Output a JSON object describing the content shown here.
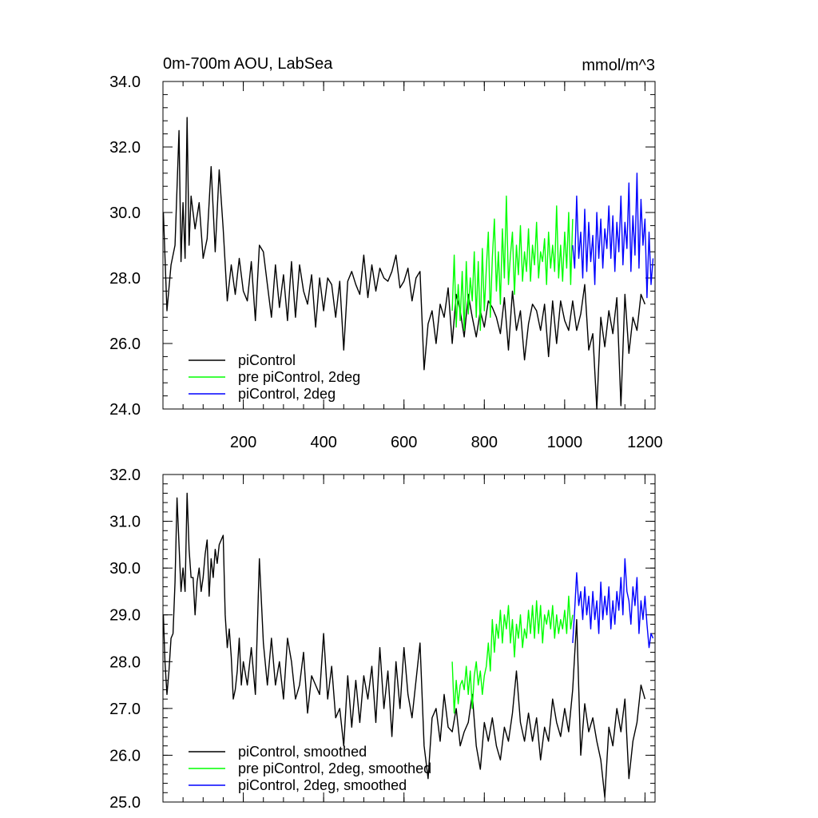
{
  "header": {
    "title": "0m-700m AOU, LabSea",
    "units": "mmol/m^3"
  },
  "chart_data": [
    {
      "type": "line",
      "title": "0m-700m AOU, LabSea",
      "units": "mmol/m^3",
      "xlim": [
        0,
        1225
      ],
      "ylim": [
        24,
        34
      ],
      "x_ticks": [
        200,
        400,
        600,
        800,
        1000,
        1200
      ],
      "x_tick_labels": [
        "200",
        "400",
        "600",
        "800",
        "1000",
        "1200"
      ],
      "y_ticks": [
        24,
        26,
        28,
        30,
        32,
        34
      ],
      "y_tick_labels": [
        "24.0",
        "26.0",
        "28.0",
        "30.0",
        "32.0",
        "34.0"
      ],
      "legend_position": "bottom-left",
      "series": [
        {
          "name": "piControl",
          "color": "#000000",
          "x": [
            1,
            10,
            20,
            30,
            40,
            45,
            50,
            55,
            60,
            65,
            70,
            80,
            90,
            100,
            110,
            120,
            130,
            140,
            150,
            160,
            170,
            180,
            190,
            200,
            210,
            220,
            230,
            240,
            250,
            260,
            270,
            280,
            290,
            300,
            310,
            320,
            330,
            340,
            350,
            360,
            370,
            380,
            390,
            400,
            410,
            420,
            430,
            440,
            450,
            460,
            470,
            480,
            490,
            500,
            510,
            520,
            530,
            540,
            550,
            560,
            570,
            580,
            590,
            600,
            610,
            620,
            630,
            640,
            650,
            660,
            670,
            680,
            690,
            700,
            710,
            720,
            730,
            740,
            750,
            760,
            770,
            780,
            790,
            800,
            810,
            820,
            830,
            840,
            850,
            860,
            870,
            880,
            890,
            900,
            910,
            920,
            930,
            940,
            950,
            960,
            970,
            980,
            990,
            1000,
            1010,
            1020,
            1030,
            1040,
            1050,
            1060,
            1070,
            1080,
            1090,
            1100,
            1110,
            1120,
            1130,
            1140,
            1150,
            1160,
            1170,
            1180,
            1190,
            1200
          ],
          "y": [
            30.0,
            27.0,
            28.4,
            29.0,
            32.5,
            28.5,
            30.3,
            28.6,
            32.9,
            29.0,
            30.5,
            29.5,
            30.3,
            28.6,
            29.2,
            31.4,
            28.8,
            31.3,
            29.5,
            27.3,
            28.4,
            27.5,
            28.6,
            27.6,
            27.3,
            28.5,
            26.7,
            29.0,
            28.8,
            27.8,
            26.8,
            28.4,
            27.1,
            28.1,
            26.7,
            28.5,
            26.8,
            28.4,
            27.6,
            27.2,
            28.1,
            26.5,
            28.0,
            27.0,
            28.0,
            27.8,
            26.8,
            27.9,
            25.8,
            27.9,
            28.2,
            27.8,
            27.5,
            28.7,
            27.4,
            28.4,
            27.6,
            28.3,
            28.0,
            27.9,
            28.2,
            28.7,
            27.7,
            27.9,
            28.3,
            27.3,
            28.0,
            28.2,
            25.2,
            26.6,
            27.0,
            26.0,
            27.2,
            26.8,
            27.7,
            26.0,
            27.5,
            27.0,
            26.2,
            27.5,
            26.8,
            26.2,
            27.0,
            26.5,
            27.3,
            27.1,
            26.8,
            26.3,
            27.4,
            25.8,
            27.6,
            26.4,
            27.0,
            25.5,
            26.6,
            27.2,
            27.0,
            26.4,
            27.2,
            25.6,
            27.3,
            26.0,
            27.3,
            26.7,
            26.4,
            27.3,
            26.4,
            26.9,
            27.8,
            25.8,
            26.3,
            24.0,
            26.8,
            25.9,
            27.0,
            26.3,
            27.4,
            24.1,
            27.5,
            25.7,
            26.8,
            26.4,
            27.5,
            27.2
          ]
        },
        {
          "name": "pre piControl, 2deg",
          "color": "#00ff00",
          "x": [
            720,
            725,
            730,
            735,
            740,
            745,
            750,
            755,
            760,
            765,
            770,
            775,
            780,
            785,
            790,
            795,
            800,
            805,
            810,
            815,
            820,
            825,
            830,
            835,
            840,
            845,
            850,
            855,
            860,
            865,
            870,
            875,
            880,
            885,
            890,
            895,
            900,
            905,
            910,
            915,
            920,
            925,
            930,
            935,
            940,
            945,
            950,
            955,
            960,
            965,
            970,
            975,
            980,
            985,
            990,
            995,
            1000,
            1005,
            1010,
            1015,
            1020
          ],
          "y": [
            27.0,
            28.7,
            26.5,
            27.8,
            26.7,
            28.2,
            26.4,
            28.5,
            26.9,
            28.0,
            27.3,
            28.8,
            26.8,
            28.5,
            26.4,
            28.9,
            27.0,
            28.3,
            29.4,
            26.8,
            28.6,
            29.8,
            27.6,
            28.8,
            27.2,
            29.5,
            28.0,
            30.5,
            27.8,
            28.7,
            29.4,
            27.5,
            29.0,
            28.1,
            29.6,
            27.9,
            28.8,
            28.2,
            29.5,
            27.9,
            29.0,
            28.4,
            29.7,
            28.0,
            28.8,
            28.5,
            29.2,
            27.8,
            29.4,
            28.3,
            29.0,
            28.2,
            30.2,
            28.0,
            29.0,
            27.9,
            29.4,
            28.3,
            30.0,
            27.8,
            29.8
          ]
        },
        {
          "name": "piControl, 2deg",
          "color": "#0000ff",
          "x": [
            1020,
            1025,
            1030,
            1035,
            1040,
            1045,
            1050,
            1055,
            1060,
            1065,
            1070,
            1075,
            1080,
            1085,
            1090,
            1095,
            1100,
            1105,
            1110,
            1115,
            1120,
            1125,
            1130,
            1135,
            1140,
            1145,
            1150,
            1155,
            1160,
            1165,
            1170,
            1175,
            1180,
            1185,
            1190,
            1195,
            1200,
            1205,
            1210,
            1215,
            1220
          ],
          "y": [
            29.0,
            28.3,
            30.5,
            28.6,
            29.4,
            28.0,
            30.1,
            28.2,
            29.7,
            28.5,
            29.3,
            27.8,
            30.0,
            28.6,
            29.8,
            28.3,
            29.5,
            28.9,
            30.2,
            28.6,
            29.9,
            28.2,
            29.7,
            28.8,
            30.5,
            28.4,
            29.7,
            28.9,
            30.9,
            28.2,
            29.9,
            28.7,
            31.2,
            28.3,
            30.4,
            29.0,
            29.8,
            27.4,
            29.4,
            27.8,
            28.6
          ]
        }
      ]
    },
    {
      "type": "line",
      "xlim": [
        0,
        1225
      ],
      "ylim": [
        25,
        32
      ],
      "x_ticks": [
        200,
        400,
        600,
        800,
        1000,
        1200
      ],
      "y_ticks": [
        25,
        26,
        27,
        28,
        29,
        30,
        31,
        32
      ],
      "y_tick_labels": [
        "25.0",
        "26.0",
        "27.0",
        "28.0",
        "29.0",
        "30.0",
        "31.0",
        "32.0"
      ],
      "legend_position": "bottom-left",
      "series": [
        {
          "name": "piControl, smoothed",
          "color": "#000000",
          "x": [
            1,
            5,
            10,
            15,
            20,
            25,
            30,
            35,
            40,
            45,
            50,
            55,
            60,
            65,
            70,
            75,
            80,
            85,
            90,
            95,
            100,
            105,
            110,
            115,
            120,
            125,
            130,
            135,
            140,
            145,
            150,
            155,
            160,
            165,
            170,
            175,
            180,
            185,
            190,
            195,
            200,
            210,
            220,
            230,
            240,
            250,
            260,
            270,
            280,
            290,
            300,
            310,
            320,
            330,
            340,
            350,
            360,
            370,
            380,
            390,
            400,
            410,
            420,
            430,
            440,
            450,
            460,
            470,
            480,
            490,
            500,
            510,
            520,
            530,
            540,
            550,
            560,
            570,
            580,
            590,
            600,
            610,
            620,
            630,
            640,
            650,
            660,
            670,
            680,
            690,
            700,
            710,
            720,
            730,
            740,
            750,
            760,
            770,
            780,
            790,
            800,
            810,
            820,
            830,
            840,
            850,
            860,
            870,
            880,
            890,
            900,
            910,
            920,
            930,
            940,
            950,
            960,
            970,
            980,
            990,
            1000,
            1010,
            1020,
            1030,
            1040,
            1050,
            1060,
            1070,
            1080,
            1090,
            1100,
            1110,
            1120,
            1130,
            1140,
            1150,
            1160,
            1170,
            1180,
            1190,
            1200
          ],
          "y": [
            29.0,
            28.0,
            27.3,
            27.8,
            28.5,
            28.6,
            29.7,
            31.5,
            30.5,
            29.5,
            30.0,
            29.5,
            31.6,
            30.4,
            29.8,
            29.8,
            29.0,
            29.7,
            30.0,
            29.5,
            29.8,
            30.3,
            30.6,
            29.4,
            30.2,
            29.8,
            30.4,
            30.1,
            30.5,
            30.6,
            30.7,
            29.0,
            28.3,
            28.7,
            28.1,
            27.2,
            27.4,
            27.8,
            28.5,
            27.5,
            28.0,
            27.5,
            28.3,
            27.3,
            30.2,
            28.4,
            27.5,
            28.5,
            27.5,
            28.0,
            27.2,
            28.5,
            28.0,
            27.2,
            27.5,
            28.2,
            26.9,
            27.7,
            27.5,
            27.3,
            28.6,
            27.2,
            27.9,
            26.8,
            27.0,
            26.2,
            27.7,
            26.6,
            27.6,
            26.7,
            27.7,
            27.2,
            27.9,
            26.7,
            28.3,
            27.0,
            27.8,
            26.4,
            28.0,
            27.0,
            28.3,
            27.3,
            26.8,
            27.6,
            28.4,
            26.2,
            25.5,
            26.8,
            27.0,
            26.3,
            27.3,
            26.6,
            26.5,
            27.0,
            26.2,
            26.5,
            26.7,
            27.3,
            26.2,
            25.7,
            26.7,
            26.3,
            26.8,
            26.2,
            25.9,
            26.6,
            26.3,
            26.9,
            27.8,
            26.7,
            26.3,
            26.9,
            26.3,
            26.8,
            25.9,
            26.6,
            26.3,
            27.2,
            26.7,
            26.4,
            27.0,
            26.5,
            27.4,
            28.9,
            26.0,
            27.1,
            26.5,
            26.8,
            26.3,
            25.9,
            25.1,
            26.6,
            26.2,
            27.0,
            26.5,
            27.2,
            25.5,
            26.3,
            26.7,
            27.5,
            27.2
          ]
        },
        {
          "name": "pre piControl, 2deg, smoothed",
          "color": "#00ff00",
          "x": [
            720,
            725,
            730,
            735,
            740,
            745,
            750,
            755,
            760,
            765,
            770,
            775,
            780,
            785,
            790,
            795,
            800,
            805,
            810,
            815,
            820,
            825,
            830,
            835,
            840,
            845,
            850,
            855,
            860,
            865,
            870,
            875,
            880,
            885,
            890,
            895,
            900,
            905,
            910,
            915,
            920,
            925,
            930,
            935,
            940,
            945,
            950,
            955,
            960,
            965,
            970,
            975,
            980,
            985,
            990,
            995,
            1000,
            1005,
            1010,
            1015,
            1020
          ],
          "y": [
            28.0,
            26.9,
            27.6,
            27.1,
            27.5,
            27.6,
            27.4,
            27.9,
            27.3,
            27.8,
            27.0,
            27.7,
            28.0,
            27.5,
            27.8,
            27.3,
            27.7,
            27.9,
            28.4,
            27.8,
            28.9,
            28.2,
            28.8,
            28.5,
            29.1,
            28.4,
            29.0,
            28.7,
            29.2,
            28.4,
            28.9,
            28.1,
            28.8,
            28.5,
            29.0,
            28.3,
            28.7,
            28.5,
            29.1,
            28.6,
            29.2,
            28.5,
            29.3,
            28.6,
            29.2,
            28.4,
            29.0,
            28.8,
            29.1,
            28.7,
            29.2,
            28.5,
            29.0,
            28.6,
            28.9,
            28.7,
            29.1,
            28.6,
            29.4,
            28.7,
            29.0
          ]
        },
        {
          "name": "piControl, 2deg, smoothed",
          "color": "#0000ff",
          "x": [
            1020,
            1025,
            1030,
            1035,
            1040,
            1045,
            1050,
            1055,
            1060,
            1065,
            1070,
            1075,
            1080,
            1085,
            1090,
            1095,
            1100,
            1105,
            1110,
            1115,
            1120,
            1125,
            1130,
            1135,
            1140,
            1145,
            1150,
            1155,
            1160,
            1165,
            1170,
            1175,
            1180,
            1185,
            1190,
            1195,
            1200,
            1205,
            1210,
            1215,
            1220
          ],
          "y": [
            28.4,
            29.1,
            29.9,
            29.2,
            29.5,
            28.9,
            29.6,
            29.0,
            29.4,
            28.7,
            29.5,
            28.9,
            29.3,
            28.6,
            29.7,
            28.9,
            29.4,
            29.0,
            29.6,
            28.7,
            29.3,
            28.8,
            29.5,
            29.1,
            29.8,
            29.0,
            30.2,
            29.5,
            29.3,
            28.8,
            29.6,
            29.2,
            29.8,
            28.6,
            29.3,
            28.9,
            29.4,
            28.8,
            28.3,
            28.6,
            28.5
          ]
        }
      ]
    }
  ]
}
